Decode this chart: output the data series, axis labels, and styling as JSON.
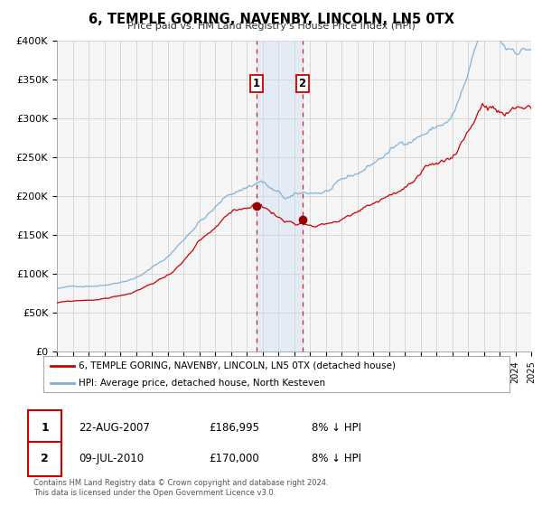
{
  "title": "6, TEMPLE GORING, NAVENBY, LINCOLN, LN5 0TX",
  "subtitle": "Price paid vs. HM Land Registry's House Price Index (HPI)",
  "legend_line1": "6, TEMPLE GORING, NAVENBY, LINCOLN, LN5 0TX (detached house)",
  "legend_line2": "HPI: Average price, detached house, North Kesteven",
  "sale1_label": "1",
  "sale1_date": "22-AUG-2007",
  "sale1_price": "£186,995",
  "sale1_hpi": "8% ↓ HPI",
  "sale1_x": 2007.64,
  "sale1_y": 186995,
  "sale2_label": "2",
  "sale2_date": "09-JUL-2010",
  "sale2_price": "£170,000",
  "sale2_hpi": "8% ↓ HPI",
  "sale2_x": 2010.52,
  "sale2_y": 170000,
  "footnote1": "Contains HM Land Registry data © Crown copyright and database right 2024.",
  "footnote2": "This data is licensed under the Open Government Licence v3.0.",
  "hpi_color": "#7ab0d8",
  "price_color": "#cc0000",
  "dot_color": "#990000",
  "shaded_region_color": "#ccddf5",
  "grid_color": "#cccccc",
  "background_color": "#f5f5f5",
  "ylim": [
    0,
    400000
  ],
  "xlim_start": 1995,
  "xlim_end": 2025,
  "yticks": [
    0,
    50000,
    100000,
    150000,
    200000,
    250000,
    300000,
    350000,
    400000
  ],
  "ytick_labels": [
    "£0",
    "£50K",
    "£100K",
    "£150K",
    "£200K",
    "£250K",
    "£300K",
    "£350K",
    "£400K"
  ]
}
